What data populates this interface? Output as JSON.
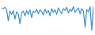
{
  "chart_data": {
    "type": "line",
    "x": [
      0,
      1,
      2,
      3,
      4,
      5,
      6,
      7,
      8,
      9,
      10,
      11,
      12,
      13,
      14,
      15,
      16,
      17,
      18,
      19,
      20,
      21,
      22,
      23,
      24,
      25,
      26,
      27,
      28,
      29,
      30,
      31,
      32,
      33,
      34,
      35,
      36,
      37,
      38,
      39,
      40,
      41,
      42,
      43,
      44,
      45,
      46,
      47,
      48,
      49,
      50,
      51,
      52,
      53,
      54,
      55
    ],
    "values": [
      80,
      78,
      82,
      75,
      40,
      70,
      60,
      72,
      45,
      68,
      62,
      30,
      65,
      70,
      55,
      72,
      60,
      74,
      50,
      70,
      66,
      76,
      62,
      74,
      68,
      58,
      76,
      64,
      72,
      55,
      78,
      66,
      74,
      60,
      80,
      70,
      62,
      78,
      72,
      82,
      64,
      76,
      70,
      84,
      66,
      74,
      80,
      62,
      78,
      70,
      20,
      74,
      68,
      84,
      10,
      86
    ],
    "color": "#3a8fd1",
    "xlim": [
      0,
      55
    ],
    "ylim": [
      0,
      100
    ],
    "tick_labels": false,
    "grid": false
  }
}
